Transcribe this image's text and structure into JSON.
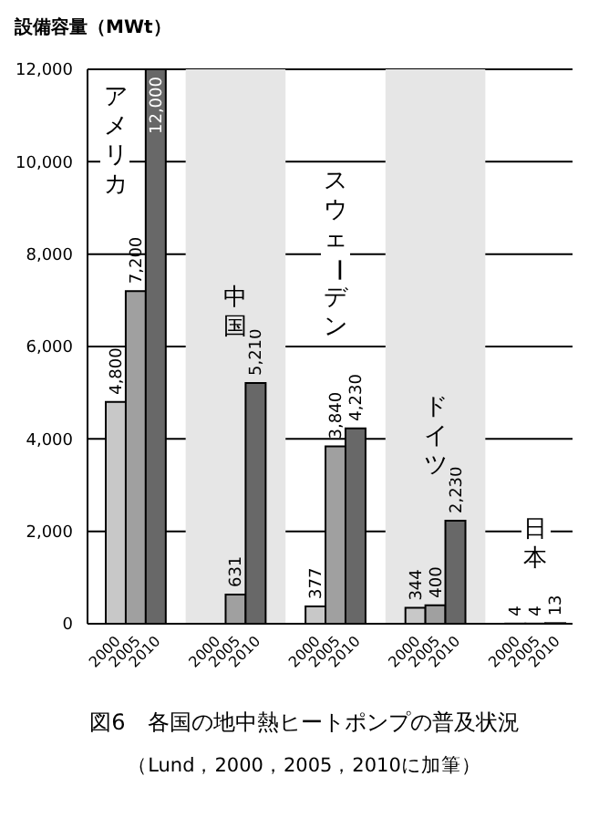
{
  "chart_data": {
    "type": "bar",
    "ylabel": "設備容量（MWt）",
    "categories": [
      "2000",
      "2005",
      "2010",
      null,
      null,
      "2000",
      "2005",
      "2010",
      null,
      null,
      "2000",
      "2005",
      "2010",
      null,
      null,
      "2000",
      "2005",
      "2010",
      null,
      null,
      "2000",
      "2005",
      "2010"
    ],
    "values": [
      4800,
      7200,
      12000,
      null,
      null,
      null,
      631,
      5210,
      null,
      null,
      377,
      3840,
      4230,
      null,
      null,
      344,
      400,
      2230,
      null,
      null,
      4,
      4,
      13
    ],
    "colors": [
      "#c8c8c8",
      "#a0a0a0",
      "#686868",
      null,
      null,
      "#c8c8c8",
      "#a0a0a0",
      "#686868",
      null,
      null,
      "#c8c8c8",
      "#a0a0a0",
      "#686868",
      null,
      null,
      "#c8c8c8",
      "#a0a0a0",
      "#686868",
      null,
      null,
      "#c8c8c8",
      "#a0a0a0",
      "#686868"
    ],
    "value_labels": [
      "4,800",
      "7,200",
      "12,000",
      null,
      null,
      null,
      "631",
      "5,210",
      null,
      null,
      "377",
      "3,840",
      "4,230",
      null,
      null,
      "344",
      "400",
      "2,230",
      null,
      null,
      "4",
      "4",
      "13"
    ],
    "ylim": [
      0,
      12000
    ],
    "yticks": [
      0,
      {
        "value": 2000,
        "label": "2,000"
      },
      {
        "value": 4000,
        "label": "4,000"
      },
      {
        "value": 6000,
        "label": "6,000"
      },
      {
        "value": 8000,
        "label": "8,000"
      },
      {
        "value": 10000,
        "label": "10,000"
      },
      {
        "value": 12000,
        "label": "12,000"
      }
    ],
    "grid": "y",
    "annotations": [
      "アメリカ",
      "中国",
      "スウェーデン",
      "ドイツ",
      "日本",
      "図6　各国の地中熱ヒートポンプの普及状況",
      "（Lund，2000，2005，2010に加筆）"
    ]
  }
}
